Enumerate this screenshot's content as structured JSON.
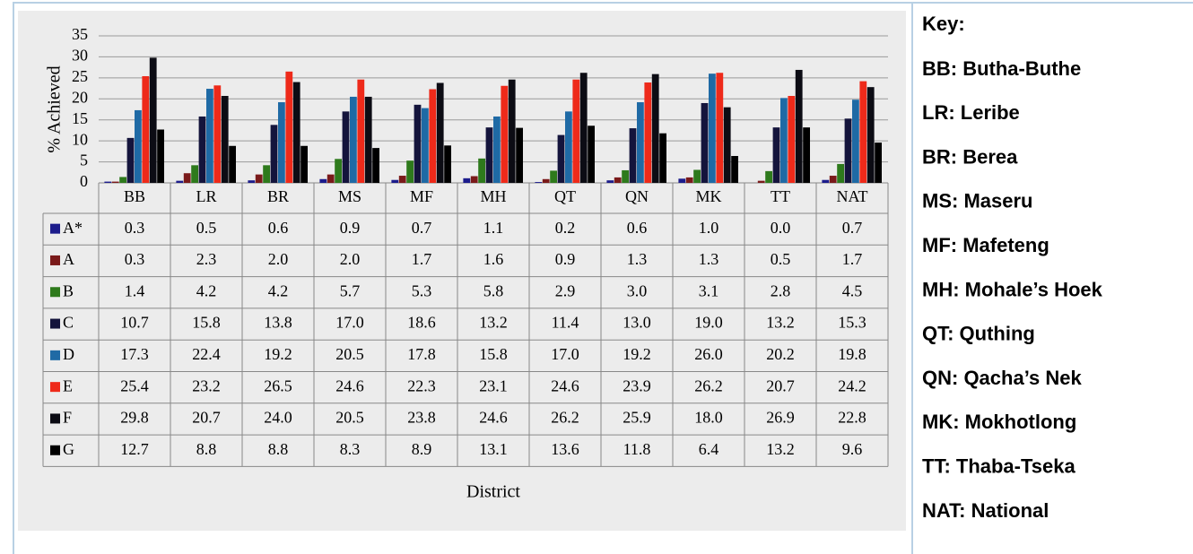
{
  "chart_data": {
    "type": "bar",
    "y_label": "% Achieved",
    "x_label": "District",
    "categories": [
      "BB",
      "LR",
      "BR",
      "MS",
      "MF",
      "MH",
      "QT",
      "QN",
      "MK",
      "TT",
      "NAT"
    ],
    "ylim": [
      0,
      35
    ],
    "yticks": [
      0,
      5,
      10,
      15,
      20,
      25,
      30,
      35
    ],
    "grid": true,
    "series": [
      {
        "name": "A*",
        "color": "#1c1c8c",
        "values": [
          0.3,
          0.5,
          0.6,
          0.9,
          0.7,
          1.1,
          0.2,
          0.6,
          1.0,
          0.0,
          0.7
        ],
        "value_labels": [
          "0.3",
          "0.5",
          "0.6",
          "0.9",
          "0.7",
          "1.1",
          "0.2",
          "0.6",
          "1.0",
          "0.0",
          "0.7"
        ]
      },
      {
        "name": "A",
        "color": "#7a1a1a",
        "values": [
          0.3,
          2.3,
          2.0,
          2.0,
          1.7,
          1.6,
          0.9,
          1.3,
          1.3,
          0.5,
          1.7
        ],
        "value_labels": [
          "0.3",
          "2.3",
          "2.0",
          "2.0",
          "1.7",
          "1.6",
          "0.9",
          "1.3",
          "1.3",
          "0.5",
          "1.7"
        ]
      },
      {
        "name": "B",
        "color": "#2e7a1c",
        "values": [
          1.4,
          4.2,
          4.2,
          5.7,
          5.3,
          5.8,
          2.9,
          3.0,
          3.1,
          2.8,
          4.5
        ],
        "value_labels": [
          "1.4",
          "4.2",
          "4.2",
          "5.7",
          "5.3",
          "5.8",
          "2.9",
          "3.0",
          "3.1",
          "2.8",
          "4.5"
        ]
      },
      {
        "name": "C",
        "color": "#14143c",
        "values": [
          10.7,
          15.8,
          13.8,
          17.0,
          18.6,
          13.2,
          11.4,
          13.0,
          19.0,
          13.2,
          15.3
        ],
        "value_labels": [
          "10.7",
          "15.8",
          "13.8",
          "17.0",
          "18.6",
          "13.2",
          "11.4",
          "13.0",
          "19.0",
          "13.2",
          "15.3"
        ]
      },
      {
        "name": "D",
        "color": "#1f6aa5",
        "values": [
          17.3,
          22.4,
          19.2,
          20.5,
          17.8,
          15.8,
          17.0,
          19.2,
          26.0,
          20.2,
          19.8
        ],
        "value_labels": [
          "17.3",
          "22.4",
          "19.2",
          "20.5",
          "17.8",
          "15.8",
          "17.0",
          "19.2",
          "26.0",
          "20.2",
          "19.8"
        ]
      },
      {
        "name": "E",
        "color": "#ee2a1a",
        "values": [
          25.4,
          23.2,
          26.5,
          24.6,
          22.3,
          23.1,
          24.6,
          23.9,
          26.2,
          20.7,
          24.2
        ],
        "value_labels": [
          "25.4",
          "23.2",
          "26.5",
          "24.6",
          "22.3",
          "23.1",
          "24.6",
          "23.9",
          "26.2",
          "20.7",
          "24.2"
        ]
      },
      {
        "name": "F",
        "color": "#0c0c14",
        "values": [
          29.8,
          20.7,
          24.0,
          20.5,
          23.8,
          24.6,
          26.2,
          25.9,
          18.0,
          26.9,
          22.8
        ],
        "value_labels": [
          "29.8",
          "20.7",
          "24.0",
          "20.5",
          "23.8",
          "24.6",
          "26.2",
          "25.9",
          "18.0",
          "26.9",
          "22.8"
        ]
      },
      {
        "name": "G",
        "color": "#000000",
        "values": [
          12.7,
          8.8,
          8.8,
          8.3,
          8.9,
          13.1,
          13.6,
          11.8,
          6.4,
          13.2,
          9.6
        ],
        "value_labels": [
          "12.7",
          "8.8",
          "8.8",
          "8.3",
          "8.9",
          "13.1",
          "13.6",
          "11.8",
          "6.4",
          "13.2",
          "9.6"
        ]
      }
    ]
  },
  "key": {
    "title": "Key:",
    "items": [
      "BB: Butha-Buthe",
      "LR: Leribe",
      "BR: Berea",
      "MS: Maseru",
      "MF: Mafeteng",
      "MH: Mohale’s Hoek",
      "QT: Quthing",
      "QN: Qacha’s Nek",
      "MK: Mokhotlong",
      "TT: Thaba-Tseka",
      "NAT: National"
    ]
  }
}
